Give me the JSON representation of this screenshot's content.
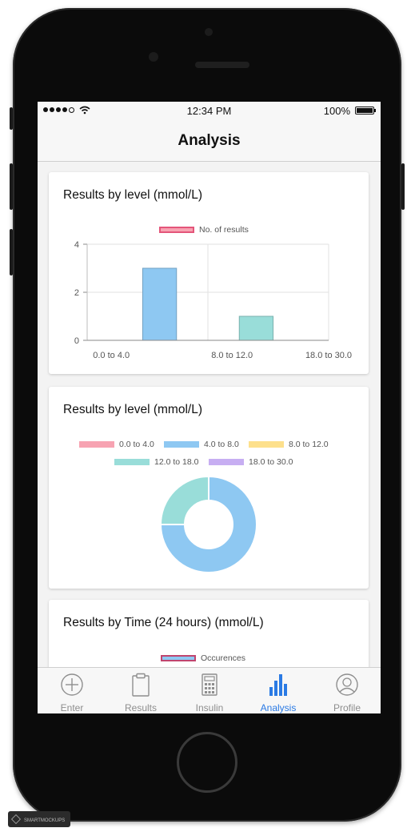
{
  "status_bar": {
    "time": "12:34 PM",
    "battery": "100%"
  },
  "nav": {
    "title": "Analysis"
  },
  "cards": [
    {
      "title": "Results by level (mmol/L)",
      "chart_data": {
        "type": "bar",
        "legend": [
          {
            "label": "No. of results",
            "color": "#f7a3b2",
            "border": "#e4557a"
          }
        ],
        "categories": [
          "0.0 to 4.0",
          "4.0 to 8.0",
          "8.0 to 12.0",
          "12.0 to 18.0",
          "18.0 to 30.0"
        ],
        "tick_labels_shown": [
          "0.0 to 4.0",
          "8.0 to 12.0",
          "18.0 to 30.0"
        ],
        "values": [
          0,
          3,
          0,
          1,
          0
        ],
        "colors": [
          "#f7a3b2",
          "#8ec8f2",
          "#fde08c",
          "#99ddd9",
          "#c7aef2"
        ],
        "y_ticks": [
          "4",
          "2",
          "0"
        ],
        "ylim": [
          0,
          4
        ],
        "grid": true
      }
    },
    {
      "title": "Results by level (mmol/L)",
      "chart_data": {
        "type": "pie",
        "legend": [
          {
            "label": "0.0 to 4.0",
            "color": "#f7a3b2"
          },
          {
            "label": "4.0 to 8.0",
            "color": "#8ec8f2"
          },
          {
            "label": "8.0 to 12.0",
            "color": "#fde08c"
          },
          {
            "label": "12.0 to 18.0",
            "color": "#99ddd9"
          },
          {
            "label": "18.0 to 30.0",
            "color": "#c7aef2"
          }
        ],
        "values": [
          0,
          3,
          0,
          1,
          0
        ],
        "donut": true
      }
    },
    {
      "title": "Results by Time (24 hours) (mmol/L)",
      "legend": [
        {
          "label": "Occurences",
          "color": "#8ec8f2",
          "border": "#c0456e"
        }
      ]
    }
  ],
  "tabs": [
    {
      "label": "Enter",
      "icon": "plus-circle-icon",
      "active": false
    },
    {
      "label": "Results",
      "icon": "clipboard-icon",
      "active": false
    },
    {
      "label": "Insulin",
      "icon": "calculator-icon",
      "active": false
    },
    {
      "label": "Analysis",
      "icon": "bar-chart-icon",
      "active": true
    },
    {
      "label": "Profile",
      "icon": "user-circle-icon",
      "active": false
    }
  ],
  "colors": {
    "accent": "#2a7ae4",
    "inactive": "#8e8e8e"
  },
  "watermark": "SMARTMOCKUPS"
}
